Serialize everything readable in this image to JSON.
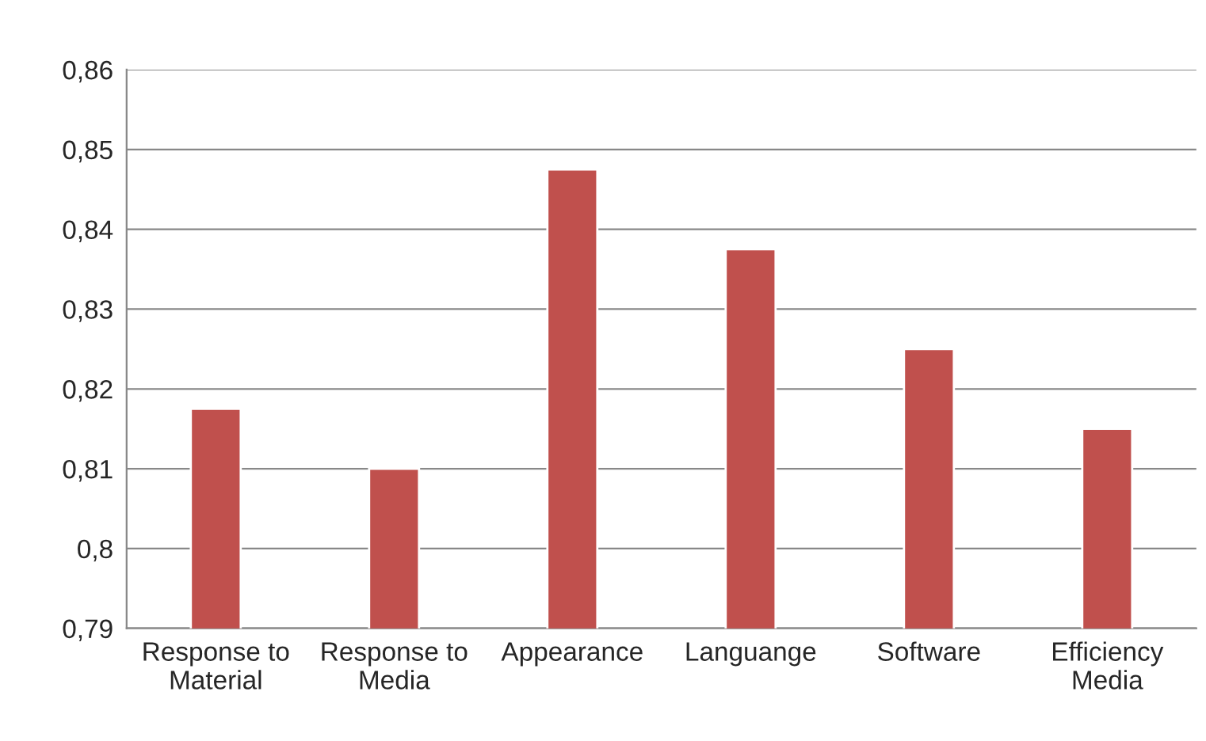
{
  "chart_data": {
    "type": "bar",
    "categories": [
      "Response to\nMaterial",
      "Response to\nMedia",
      "Appearance",
      "Languange",
      "Software",
      "Efficiency\nMedia"
    ],
    "values": [
      0.8175,
      0.81,
      0.8475,
      0.8375,
      0.825,
      0.815
    ],
    "color": "#c0504d",
    "ylim": [
      0.79,
      0.86
    ],
    "yticks": [
      {
        "value": 0.79,
        "label": "0,79"
      },
      {
        "value": 0.8,
        "label": "0,8"
      },
      {
        "value": 0.81,
        "label": "0,81"
      },
      {
        "value": 0.82,
        "label": "0,82"
      },
      {
        "value": 0.83,
        "label": "0,83"
      },
      {
        "value": 0.84,
        "label": "0,84"
      },
      {
        "value": 0.85,
        "label": "0,85"
      },
      {
        "value": 0.86,
        "label": "0,86"
      }
    ],
    "grid": "y"
  }
}
